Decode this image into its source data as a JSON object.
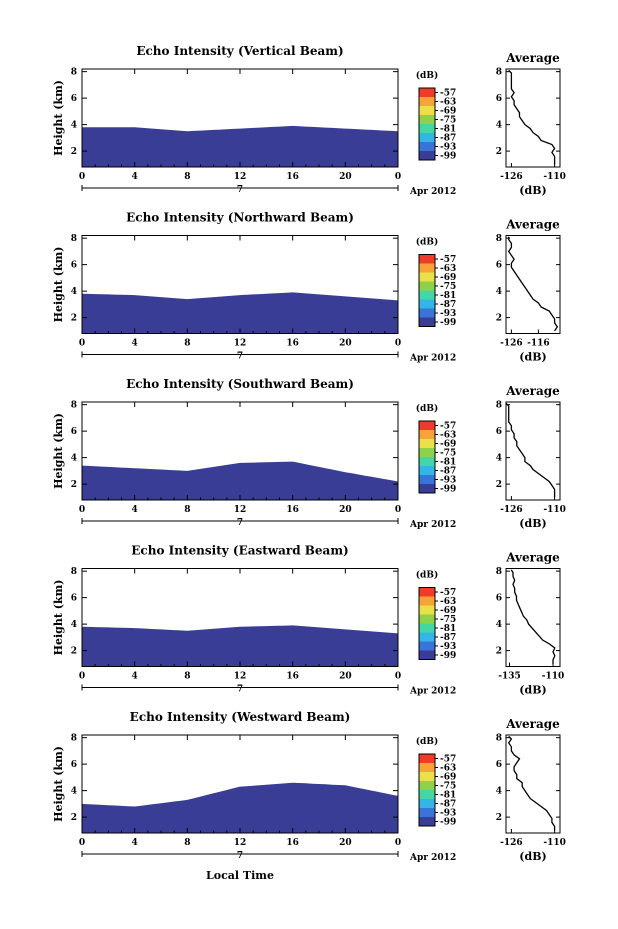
{
  "figure": {
    "bottom_label": "Local Time",
    "date_label": "Apr 2012",
    "day_label": "7",
    "colorbar_unit": "(dB)",
    "colorbar_ticks": [
      "-57",
      "-63",
      "-69",
      "-75",
      "-81",
      "-87",
      "-93",
      "-99"
    ],
    "colorbar_colors": [
      "#ee3b2a",
      "#f8a33a",
      "#e9e04a",
      "#8fd24a",
      "#46d6a4",
      "#33b6e6",
      "#3a74d9",
      "#3a3d95"
    ],
    "fill_color": "#3a3d95",
    "line_color": "#000000"
  },
  "chart_data": [
    {
      "type": "heatmap",
      "title": "Echo Intensity (Vertical Beam)",
      "ylabel": "Height (km)",
      "xlabel": "Local Time",
      "x_ticks": [
        "0",
        "4",
        "8",
        "12",
        "16",
        "20",
        "0"
      ],
      "y_ticks": [
        "2",
        "4",
        "6",
        "8"
      ],
      "xlim": [
        0,
        24
      ],
      "ylim": [
        0.8,
        8.2
      ],
      "colorbar": {
        "unit": "dB",
        "ticks": [
          -57,
          -63,
          -69,
          -75,
          -81,
          -87,
          -93,
          -99
        ]
      },
      "layer_top_km": {
        "hours": [
          0,
          4,
          8,
          12,
          16,
          20,
          24
        ],
        "values": [
          3.8,
          3.8,
          3.5,
          3.7,
          3.9,
          3.7,
          3.5
        ]
      },
      "profile": {
        "title": "Average",
        "xlabel": "(dB)",
        "x_ticks": [
          "-126",
          "-110"
        ],
        "xlim": [
          -128,
          -108
        ],
        "y_ticks": [
          "2",
          "4",
          "6",
          "8"
        ],
        "ylim": [
          0.8,
          8.2
        ],
        "heights_km": [
          1.0,
          1.3,
          1.6,
          1.9,
          2.2,
          2.5,
          2.8,
          3.1,
          3.4,
          3.7,
          4.0,
          4.3,
          4.6,
          4.9,
          5.2,
          5.5,
          5.8,
          6.1,
          6.4,
          6.7,
          7.0,
          7.3,
          7.6,
          7.9,
          8.1
        ],
        "values_db": [
          -110,
          -110,
          -110,
          -111,
          -110,
          -111,
          -115,
          -116,
          -118,
          -119,
          -121,
          -122,
          -123,
          -123,
          -124,
          -125,
          -125,
          -126,
          -125,
          -126,
          -126,
          -126,
          -126,
          -126,
          -127
        ]
      }
    },
    {
      "type": "heatmap",
      "title": "Echo Intensity (Northward Beam)",
      "ylabel": "Height (km)",
      "xlabel": "Local Time",
      "x_ticks": [
        "0",
        "4",
        "8",
        "12",
        "16",
        "20",
        "0"
      ],
      "y_ticks": [
        "2",
        "4",
        "6",
        "8"
      ],
      "xlim": [
        0,
        24
      ],
      "ylim": [
        0.8,
        8.2
      ],
      "colorbar": {
        "unit": "dB",
        "ticks": [
          -57,
          -63,
          -69,
          -75,
          -81,
          -87,
          -93,
          -99
        ]
      },
      "layer_top_km": {
        "hours": [
          0,
          4,
          8,
          12,
          16,
          20,
          24
        ],
        "values": [
          3.8,
          3.7,
          3.4,
          3.7,
          3.9,
          3.6,
          3.3
        ]
      },
      "profile": {
        "title": "Average",
        "xlabel": "(dB)",
        "x_ticks": [
          "-126",
          "-116"
        ],
        "xlim": [
          -128,
          -108
        ],
        "y_ticks": [
          "2",
          "4",
          "6",
          "8"
        ],
        "ylim": [
          0.8,
          8.2
        ],
        "heights_km": [
          1.0,
          1.3,
          1.6,
          1.9,
          2.2,
          2.5,
          2.8,
          3.1,
          3.4,
          3.7,
          4.0,
          4.3,
          4.6,
          4.9,
          5.2,
          5.5,
          5.8,
          6.1,
          6.4,
          6.7,
          7.0,
          7.3,
          7.6,
          7.9,
          8.1
        ],
        "values_db": [
          -110,
          -109,
          -110,
          -110,
          -111,
          -112,
          -115,
          -116,
          -118,
          -119,
          -120,
          -121,
          -122,
          -123,
          -124,
          -125,
          -126,
          -126,
          -125,
          -126,
          -127,
          -126,
          -126,
          -127,
          -127
        ]
      }
    },
    {
      "type": "heatmap",
      "title": "Echo Intensity (Southward Beam)",
      "ylabel": "Height (km)",
      "xlabel": "Local Time",
      "x_ticks": [
        "0",
        "4",
        "8",
        "12",
        "16",
        "20",
        "0"
      ],
      "y_ticks": [
        "2",
        "4",
        "6",
        "8"
      ],
      "xlim": [
        0,
        24
      ],
      "ylim": [
        0.8,
        8.2
      ],
      "colorbar": {
        "unit": "dB",
        "ticks": [
          -57,
          -63,
          -69,
          -75,
          -81,
          -87,
          -93,
          -99
        ]
      },
      "layer_top_km": {
        "hours": [
          0,
          4,
          8,
          12,
          16,
          20,
          24
        ],
        "values": [
          3.4,
          3.2,
          3.0,
          3.6,
          3.7,
          2.9,
          2.2
        ]
      },
      "profile": {
        "title": "Average",
        "xlabel": "(dB)",
        "x_ticks": [
          "-126",
          "-110"
        ],
        "xlim": [
          -128,
          -108
        ],
        "y_ticks": [
          "2",
          "4",
          "6",
          "8"
        ],
        "ylim": [
          0.8,
          8.2
        ],
        "heights_km": [
          1.0,
          1.3,
          1.6,
          1.9,
          2.2,
          2.5,
          2.8,
          3.1,
          3.4,
          3.7,
          4.0,
          4.3,
          4.6,
          4.9,
          5.2,
          5.5,
          5.8,
          6.1,
          6.4,
          6.7,
          7.0,
          7.3,
          7.6,
          7.9,
          8.1
        ],
        "values_db": [
          -110,
          -110,
          -110,
          -111,
          -112,
          -114,
          -116,
          -118,
          -119,
          -121,
          -121,
          -122,
          -123,
          -124,
          -124,
          -125,
          -125,
          -126,
          -126,
          -127,
          -127,
          -127,
          -127,
          -127,
          -128
        ]
      }
    },
    {
      "type": "heatmap",
      "title": "Echo Intensity (Eastward Beam)",
      "ylabel": "Height (km)",
      "xlabel": "Local Time",
      "x_ticks": [
        "0",
        "4",
        "8",
        "12",
        "16",
        "20",
        "0"
      ],
      "y_ticks": [
        "2",
        "4",
        "6",
        "8"
      ],
      "xlim": [
        0,
        24
      ],
      "ylim": [
        0.8,
        8.2
      ],
      "colorbar": {
        "unit": "dB",
        "ticks": [
          -57,
          -63,
          -69,
          -75,
          -81,
          -87,
          -93,
          -99
        ]
      },
      "layer_top_km": {
        "hours": [
          0,
          4,
          8,
          12,
          16,
          20,
          24
        ],
        "values": [
          3.8,
          3.7,
          3.5,
          3.8,
          3.9,
          3.6,
          3.3
        ]
      },
      "profile": {
        "title": "Average",
        "xlabel": "(dB)",
        "x_ticks": [
          "-135",
          "-110"
        ],
        "xlim": [
          -137,
          -106
        ],
        "y_ticks": [
          "2",
          "4",
          "6",
          "8"
        ],
        "ylim": [
          0.8,
          8.2
        ],
        "heights_km": [
          1.0,
          1.3,
          1.6,
          1.9,
          2.2,
          2.5,
          2.8,
          3.1,
          3.4,
          3.7,
          4.0,
          4.3,
          4.6,
          4.9,
          5.2,
          5.5,
          5.8,
          6.1,
          6.4,
          6.7,
          7.0,
          7.3,
          7.6,
          7.9,
          8.1
        ],
        "values_db": [
          -110,
          -110,
          -109,
          -110,
          -109,
          -112,
          -116,
          -118,
          -120,
          -122,
          -124,
          -125,
          -127,
          -128,
          -129,
          -130,
          -131,
          -131,
          -132,
          -132,
          -133,
          -132,
          -133,
          -133,
          -134
        ]
      }
    },
    {
      "type": "heatmap",
      "title": "Echo Intensity (Westward Beam)",
      "ylabel": "Height (km)",
      "xlabel": "Local Time",
      "x_ticks": [
        "0",
        "4",
        "8",
        "12",
        "16",
        "20",
        "0"
      ],
      "y_ticks": [
        "2",
        "4",
        "6",
        "8"
      ],
      "xlim": [
        0,
        24
      ],
      "ylim": [
        0.8,
        8.2
      ],
      "colorbar": {
        "unit": "dB",
        "ticks": [
          -57,
          -63,
          -69,
          -75,
          -81,
          -87,
          -93,
          -99
        ]
      },
      "layer_top_km": {
        "hours": [
          0,
          4,
          8,
          12,
          16,
          20,
          24
        ],
        "values": [
          3.0,
          2.8,
          3.3,
          4.3,
          4.6,
          4.4,
          3.6
        ]
      },
      "profile": {
        "title": "Average",
        "xlabel": "(dB)",
        "x_ticks": [
          "-126",
          "-110"
        ],
        "xlim": [
          -128,
          -108
        ],
        "y_ticks": [
          "2",
          "4",
          "6",
          "8"
        ],
        "ylim": [
          0.8,
          8.2
        ],
        "heights_km": [
          1.0,
          1.3,
          1.6,
          1.9,
          2.2,
          2.5,
          2.8,
          3.1,
          3.4,
          3.7,
          4.0,
          4.3,
          4.6,
          4.9,
          5.2,
          5.5,
          5.8,
          6.1,
          6.4,
          6.7,
          7.0,
          7.3,
          7.6,
          7.9,
          8.1
        ],
        "values_db": [
          -110,
          -110,
          -111,
          -111,
          -112,
          -113,
          -115,
          -117,
          -119,
          -120,
          -121,
          -122,
          -122,
          -124,
          -124,
          -125,
          -125,
          -124,
          -123,
          -125,
          -126,
          -126,
          -127,
          -126,
          -127
        ]
      }
    }
  ]
}
